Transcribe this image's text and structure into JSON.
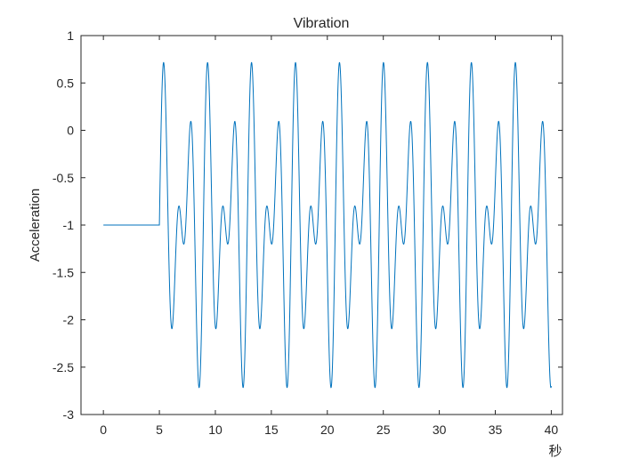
{
  "chart_data": {
    "type": "line",
    "title": "Vibration",
    "xlabel": "秒",
    "ylabel": "Acceleration",
    "xlim": [
      -2,
      41
    ],
    "ylim": [
      -3,
      1
    ],
    "x_ticks": [
      0,
      5,
      10,
      15,
      20,
      25,
      30,
      35,
      40
    ],
    "y_ticks": [
      1,
      0.5,
      0,
      -0.5,
      -1,
      -1.5,
      -2,
      -2.5,
      -3
    ],
    "x_tick_labels": [
      "0",
      "5",
      "10",
      "15",
      "20",
      "25",
      "30",
      "35",
      "40"
    ],
    "y_tick_labels": [
      "1",
      "0.5",
      "0",
      "-0.5",
      "-1",
      "-1.5",
      "-2",
      "-2.5",
      "-3"
    ],
    "grid": false,
    "series": [
      {
        "color": "#0072BD",
        "description": "flat at -1 from t=0 to t=5, then y = -1 + 0.9*(sin(4.8*(t-5)) + sin(3.2*(t-5))) until t=40",
        "x_start": 0,
        "onset": 5,
        "x_end": 40,
        "baseline": -1,
        "components": [
          {
            "amplitude": 0.9,
            "angular_frequency": 4.8
          },
          {
            "amplitude": 0.9,
            "angular_frequency": 3.2
          }
        ]
      }
    ]
  }
}
